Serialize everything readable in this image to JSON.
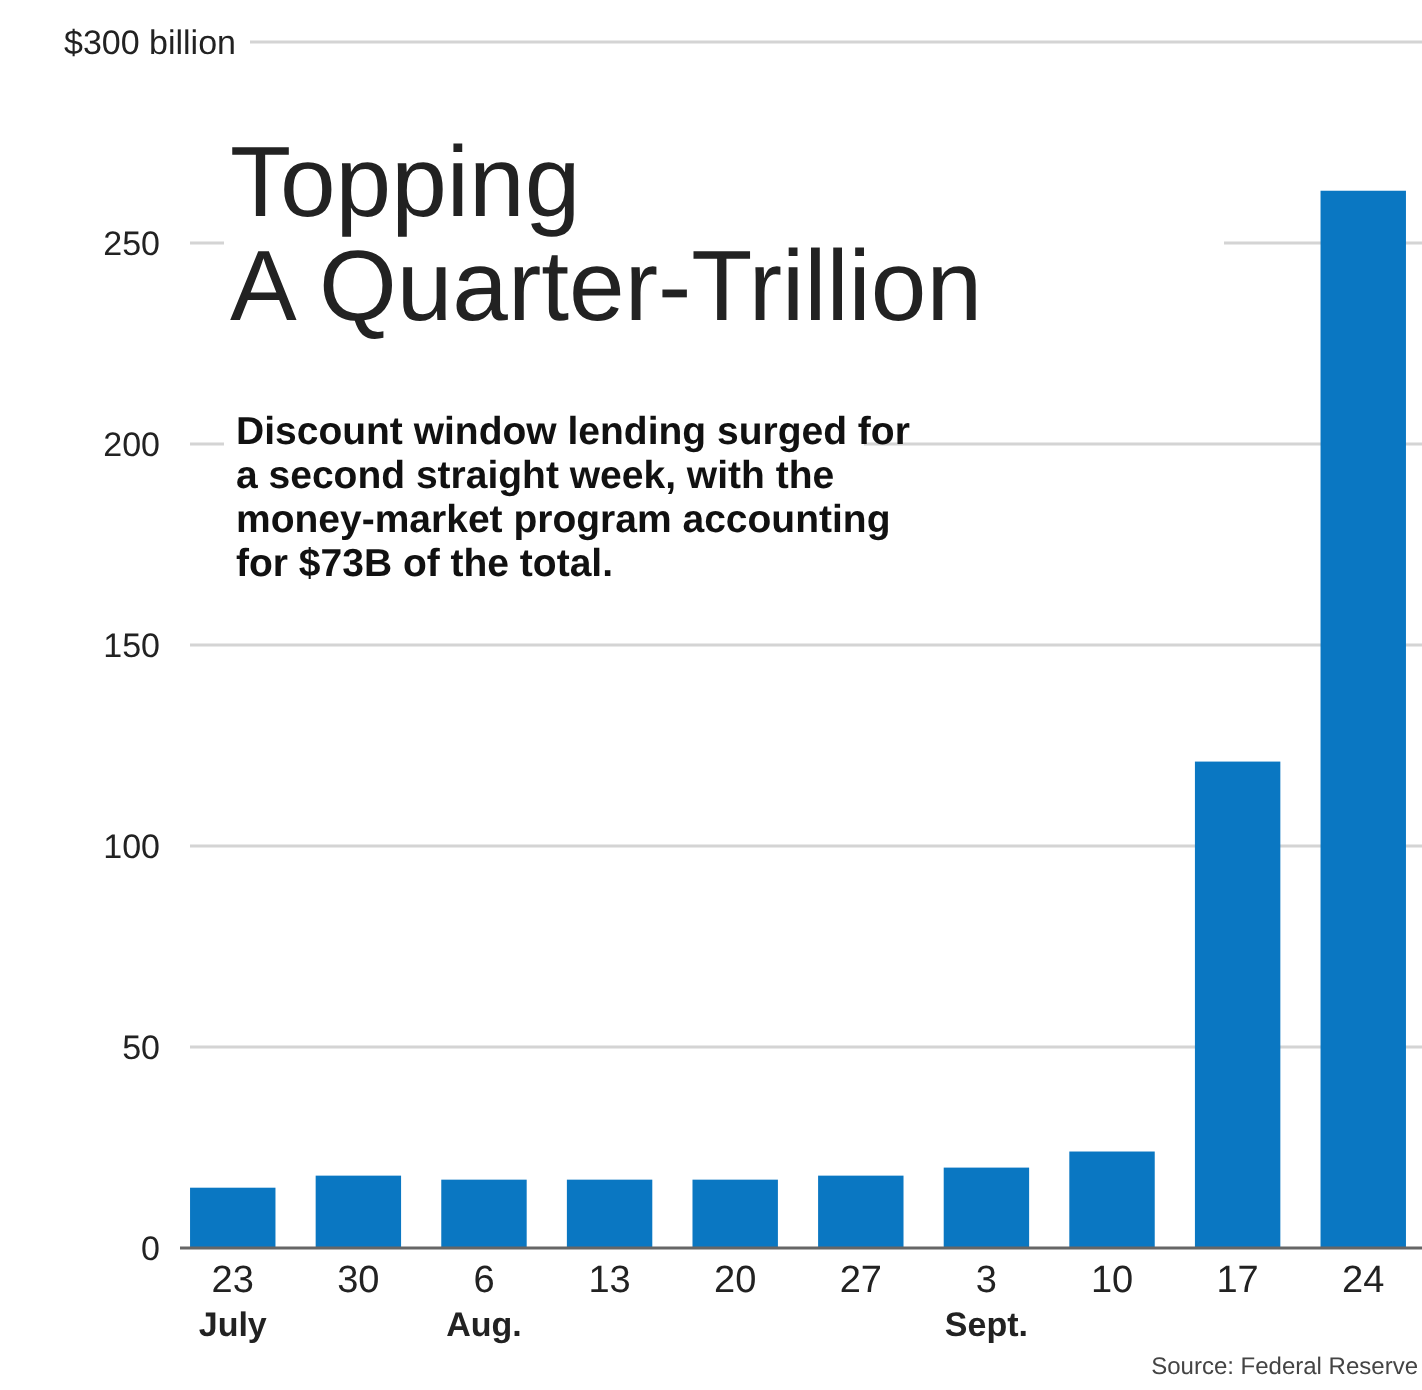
{
  "chart_data": {
    "type": "bar",
    "title": "Topping\nA Quarter-Trillion",
    "subtitle": "Discount window lending surged for\na second straight week, with the\nmoney-market program accounting\nfor $73B of the total.",
    "categories": [
      "23\nJuly",
      "30",
      "6\nAug.",
      "13",
      "20",
      "27",
      "3\nSept.",
      "10",
      "17",
      "24"
    ],
    "values": [
      15,
      18,
      17,
      17,
      17,
      18,
      20,
      24,
      121,
      263
    ],
    "color": "#0a77c2",
    "ylim": [
      0,
      300
    ],
    "yticks": [
      0,
      50,
      100,
      150,
      200,
      250,
      {
        "value": 300,
        "label": "$300 billion"
      }
    ],
    "grid": "y",
    "annotations": [
      "Source: Federal Reserve"
    ]
  }
}
